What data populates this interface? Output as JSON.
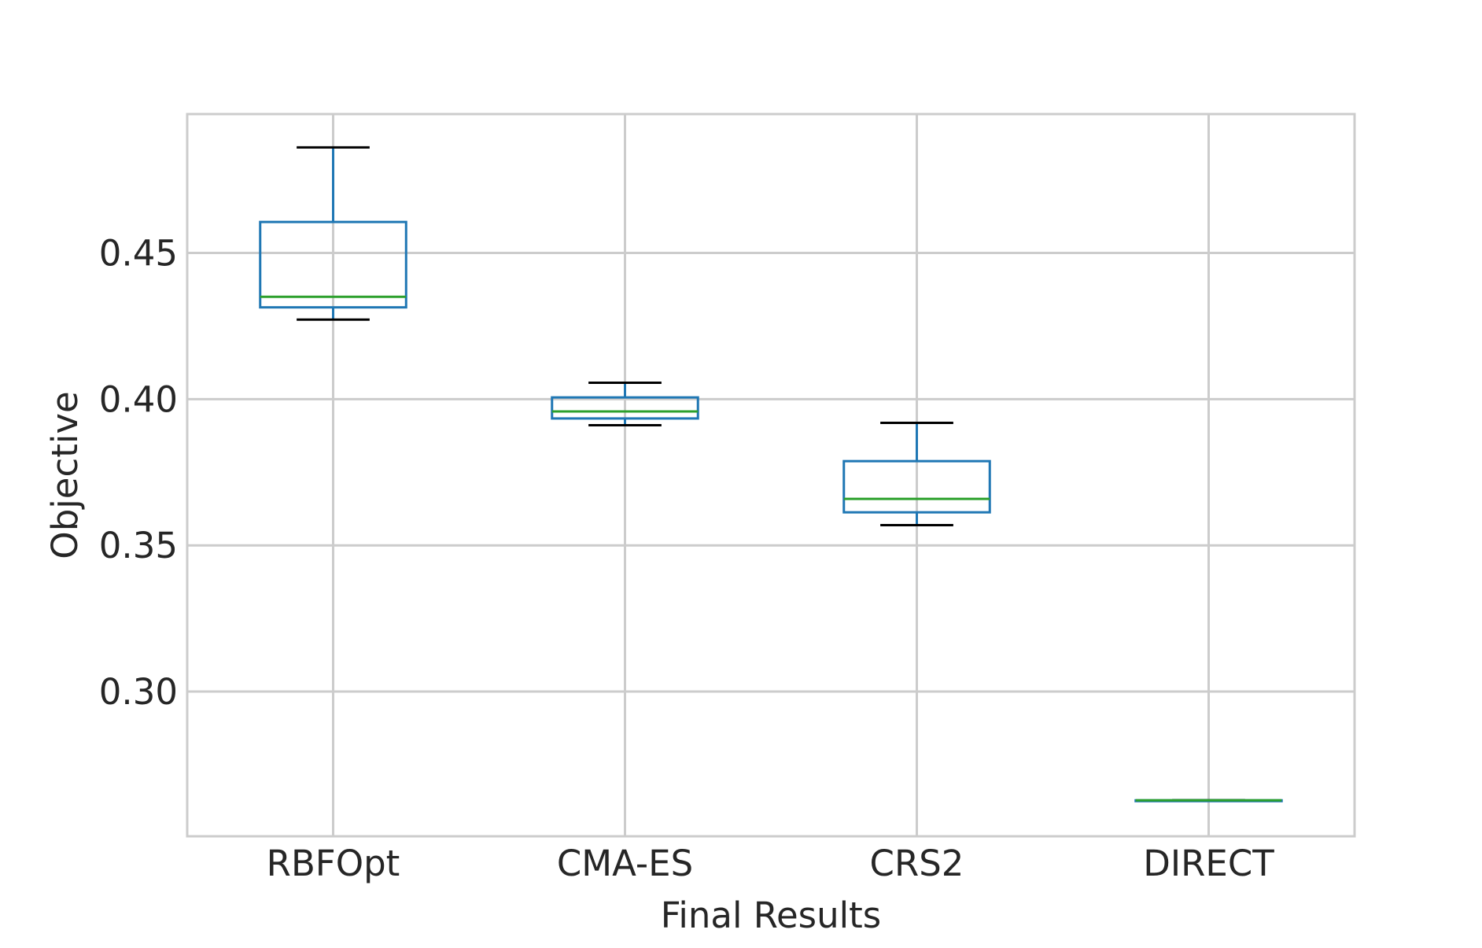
{
  "chart_data": {
    "type": "box",
    "title": "",
    "xlabel": "Final Results",
    "ylabel": "Objective",
    "categories": [
      "RBFOpt",
      "CMA-ES",
      "CRS2",
      "DIRECT"
    ],
    "ylim": [
      0.2505,
      0.4975
    ],
    "yticks": [
      0.3,
      0.35,
      0.4,
      0.45
    ],
    "ytick_labels": [
      "0.30",
      "0.35",
      "0.40",
      "0.45"
    ],
    "grid": true,
    "legend": "none",
    "boxes": [
      {
        "label": "RBFOpt",
        "whislo": 0.4272,
        "q1": 0.4314,
        "med": 0.435,
        "q3": 0.4606,
        "whishi": 0.4861
      },
      {
        "label": "CMA-ES",
        "whislo": 0.3911,
        "q1": 0.3934,
        "med": 0.3958,
        "q3": 0.4006,
        "whishi": 0.4056
      },
      {
        "label": "CRS2",
        "whislo": 0.3569,
        "q1": 0.3613,
        "med": 0.3659,
        "q3": 0.3788,
        "whishi": 0.3919
      },
      {
        "label": "DIRECT",
        "whislo": 0.2628,
        "q1": 0.2628,
        "med": 0.2628,
        "q3": 0.2628,
        "whishi": 0.2628
      }
    ],
    "colors": {
      "box": "#1f77b4",
      "median": "#2ca02c",
      "whisker": "#1f77b4",
      "cap": "#000000",
      "grid": "#cccccc",
      "frame": "#cccccc",
      "text": "#262626"
    }
  }
}
